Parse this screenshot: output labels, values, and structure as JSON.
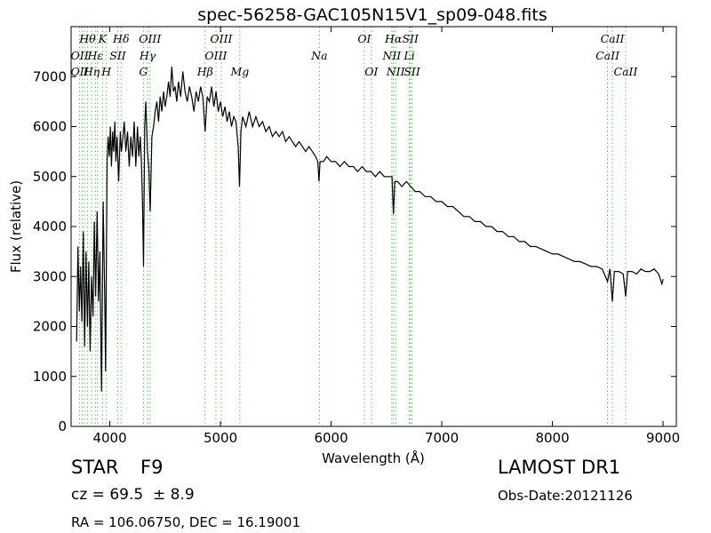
{
  "chart_data": {
    "type": "line",
    "title": "spec-56258-GAC105N15V1_sp09-048.fits",
    "xlabel": "Wavelength (Å)",
    "ylabel": "Flux (relative)",
    "xlim": [
      3650,
      9120
    ],
    "ylim": [
      0,
      8000
    ],
    "xticks": [
      4000,
      5000,
      6000,
      7000,
      8000,
      9000
    ],
    "yticks": [
      0,
      1000,
      2000,
      3000,
      4000,
      5000,
      6000,
      7000
    ],
    "grid": false,
    "series": [
      {
        "points": [
          [
            3700,
            1700
          ],
          [
            3712,
            3600
          ],
          [
            3725,
            2300
          ],
          [
            3735,
            3200
          ],
          [
            3748,
            2100
          ],
          [
            3760,
            3900
          ],
          [
            3772,
            1600
          ],
          [
            3785,
            3500
          ],
          [
            3798,
            2000
          ],
          [
            3810,
            3300
          ],
          [
            3822,
            1500
          ],
          [
            3835,
            3000
          ],
          [
            3848,
            2200
          ],
          [
            3860,
            4100
          ],
          [
            3872,
            2600
          ],
          [
            3885,
            4300
          ],
          [
            3898,
            2500
          ],
          [
            3910,
            3500
          ],
          [
            3925,
            700
          ],
          [
            3940,
            4500
          ],
          [
            3955,
            2400
          ],
          [
            3962,
            1100
          ],
          [
            3975,
            5300
          ],
          [
            3985,
            5800
          ],
          [
            3995,
            5400
          ],
          [
            4005,
            6000
          ],
          [
            4015,
            5200
          ],
          [
            4025,
            5900
          ],
          [
            4035,
            5500
          ],
          [
            4045,
            6100
          ],
          [
            4055,
            5300
          ],
          [
            4065,
            5800
          ],
          [
            4080,
            4900
          ],
          [
            4095,
            5900
          ],
          [
            4105,
            5500
          ],
          [
            4115,
            5700
          ],
          [
            4130,
            6100
          ],
          [
            4145,
            5500
          ],
          [
            4160,
            5900
          ],
          [
            4175,
            5200
          ],
          [
            4190,
            5800
          ],
          [
            4205,
            5400
          ],
          [
            4220,
            6100
          ],
          [
            4235,
            5200
          ],
          [
            4250,
            6000
          ],
          [
            4262,
            5400
          ],
          [
            4275,
            5800
          ],
          [
            4285,
            5300
          ],
          [
            4295,
            4500
          ],
          [
            4305,
            3200
          ],
          [
            4315,
            6000
          ],
          [
            4325,
            6500
          ],
          [
            4340,
            5500
          ],
          [
            4352,
            5200
          ],
          [
            4365,
            4300
          ],
          [
            4380,
            5800
          ],
          [
            4395,
            6000
          ],
          [
            4410,
            6300
          ],
          [
            4425,
            6500
          ],
          [
            4440,
            6100
          ],
          [
            4455,
            6600
          ],
          [
            4470,
            6300
          ],
          [
            4485,
            6700
          ],
          [
            4500,
            6400
          ],
          [
            4515,
            6600
          ],
          [
            4530,
            6900
          ],
          [
            4545,
            6600
          ],
          [
            4560,
            7200
          ],
          [
            4575,
            6700
          ],
          [
            4590,
            6800
          ],
          [
            4605,
            6500
          ],
          [
            4620,
            6900
          ],
          [
            4640,
            6600
          ],
          [
            4660,
            7100
          ],
          [
            4680,
            6700
          ],
          [
            4700,
            6500
          ],
          [
            4720,
            6800
          ],
          [
            4740,
            6600
          ],
          [
            4760,
            6300
          ],
          [
            4780,
            6700
          ],
          [
            4800,
            6500
          ],
          [
            4820,
            6800
          ],
          [
            4840,
            6600
          ],
          [
            4861,
            5900
          ],
          [
            4880,
            6600
          ],
          [
            4900,
            6500
          ],
          [
            4920,
            6800
          ],
          [
            4940,
            6400
          ],
          [
            4960,
            6700
          ],
          [
            4980,
            6300
          ],
          [
            5000,
            6500
          ],
          [
            5020,
            6200
          ],
          [
            5040,
            6400
          ],
          [
            5060,
            6100
          ],
          [
            5080,
            6300
          ],
          [
            5100,
            6000
          ],
          [
            5120,
            6200
          ],
          [
            5140,
            6100
          ],
          [
            5160,
            5600
          ],
          [
            5172,
            4800
          ],
          [
            5185,
            5900
          ],
          [
            5200,
            6200
          ],
          [
            5230,
            6000
          ],
          [
            5260,
            6300
          ],
          [
            5290,
            6000
          ],
          [
            5320,
            6200
          ],
          [
            5350,
            6000
          ],
          [
            5380,
            6100
          ],
          [
            5410,
            5900
          ],
          [
            5440,
            6000
          ],
          [
            5470,
            5800
          ],
          [
            5500,
            5900
          ],
          [
            5530,
            5800
          ],
          [
            5560,
            5900
          ],
          [
            5590,
            5700
          ],
          [
            5620,
            5800
          ],
          [
            5650,
            5700
          ],
          [
            5680,
            5600
          ],
          [
            5710,
            5700
          ],
          [
            5740,
            5600
          ],
          [
            5770,
            5500
          ],
          [
            5800,
            5600
          ],
          [
            5830,
            5500
          ],
          [
            5860,
            5400
          ],
          [
            5880,
            5300
          ],
          [
            5890,
            4900
          ],
          [
            5900,
            5300
          ],
          [
            5930,
            5300
          ],
          [
            5960,
            5400
          ],
          [
            6000,
            5300
          ],
          [
            6040,
            5300
          ],
          [
            6080,
            5200
          ],
          [
            6120,
            5300
          ],
          [
            6160,
            5200
          ],
          [
            6200,
            5200
          ],
          [
            6240,
            5100
          ],
          [
            6280,
            5200
          ],
          [
            6320,
            5100
          ],
          [
            6360,
            5100
          ],
          [
            6400,
            5000
          ],
          [
            6440,
            5100
          ],
          [
            6480,
            5000
          ],
          [
            6520,
            5000
          ],
          [
            6550,
            5000
          ],
          [
            6563,
            4250
          ],
          [
            6575,
            4900
          ],
          [
            6600,
            4900
          ],
          [
            6640,
            4800
          ],
          [
            6680,
            4900
          ],
          [
            6720,
            4800
          ],
          [
            6760,
            4700
          ],
          [
            6800,
            4700
          ],
          [
            6850,
            4600
          ],
          [
            6900,
            4600
          ],
          [
            6950,
            4500
          ],
          [
            7000,
            4500
          ],
          [
            7050,
            4400
          ],
          [
            7100,
            4400
          ],
          [
            7150,
            4300
          ],
          [
            7200,
            4200
          ],
          [
            7250,
            4200
          ],
          [
            7300,
            4100
          ],
          [
            7350,
            4100
          ],
          [
            7400,
            4000
          ],
          [
            7450,
            4000
          ],
          [
            7500,
            3900
          ],
          [
            7550,
            3900
          ],
          [
            7600,
            3800
          ],
          [
            7650,
            3800
          ],
          [
            7700,
            3700
          ],
          [
            7750,
            3700
          ],
          [
            7800,
            3600
          ],
          [
            7850,
            3600
          ],
          [
            7900,
            3550
          ],
          [
            7950,
            3500
          ],
          [
            8000,
            3450
          ],
          [
            8050,
            3450
          ],
          [
            8100,
            3400
          ],
          [
            8150,
            3350
          ],
          [
            8200,
            3300
          ],
          [
            8250,
            3300
          ],
          [
            8300,
            3250
          ],
          [
            8350,
            3200
          ],
          [
            8400,
            3200
          ],
          [
            8450,
            3150
          ],
          [
            8498,
            2900
          ],
          [
            8520,
            3150
          ],
          [
            8542,
            2500
          ],
          [
            8560,
            3100
          ],
          [
            8600,
            3100
          ],
          [
            8640,
            3050
          ],
          [
            8662,
            2600
          ],
          [
            8680,
            3100
          ],
          [
            8720,
            3100
          ],
          [
            8760,
            3050
          ],
          [
            8800,
            3150
          ],
          [
            8840,
            3100
          ],
          [
            8880,
            3100
          ],
          [
            8920,
            3150
          ],
          [
            8960,
            3050
          ],
          [
            8990,
            2850
          ],
          [
            9000,
            2950
          ]
        ]
      }
    ],
    "reference_lines": [
      {
        "x": 3727,
        "labels": [
          {
            "text": "OII",
            "row": 2
          },
          {
            "text": "OII",
            "row": 3
          }
        ]
      },
      {
        "x": 3750,
        "labels": []
      },
      {
        "x": 3771,
        "labels": []
      },
      {
        "x": 3798,
        "labels": [
          {
            "text": "Hθ",
            "row": 1
          }
        ]
      },
      {
        "x": 3835,
        "labels": [
          {
            "text": "Hη",
            "row": 3
          }
        ]
      },
      {
        "x": 3869,
        "labels": [
          {
            "text": "Hε",
            "row": 2
          }
        ]
      },
      {
        "x": 3889,
        "labels": []
      },
      {
        "x": 3934,
        "labels": [
          {
            "text": "K",
            "row": 1
          }
        ]
      },
      {
        "x": 3969,
        "labels": [
          {
            "text": "H",
            "row": 3
          }
        ]
      },
      {
        "x": 4072,
        "labels": [
          {
            "text": "SII",
            "row": 2
          }
        ]
      },
      {
        "x": 4102,
        "labels": [
          {
            "text": "Hδ",
            "row": 1
          }
        ]
      },
      {
        "x": 4304,
        "labels": [
          {
            "text": "G",
            "row": 3
          }
        ]
      },
      {
        "x": 4341,
        "labels": [
          {
            "text": "Hγ",
            "row": 2
          }
        ]
      },
      {
        "x": 4363,
        "labels": [
          {
            "text": "OIII",
            "row": 1
          }
        ]
      },
      {
        "x": 4861,
        "labels": [
          {
            "text": "Hβ",
            "row": 3
          }
        ]
      },
      {
        "x": 4959,
        "labels": [
          {
            "text": "OIII",
            "row": 2
          }
        ]
      },
      {
        "x": 5007,
        "labels": [
          {
            "text": "OIII",
            "row": 1
          }
        ]
      },
      {
        "x": 5175,
        "labels": [
          {
            "text": "Mg",
            "row": 3
          }
        ]
      },
      {
        "x": 5894,
        "labels": [
          {
            "text": "Na",
            "row": 2
          }
        ]
      },
      {
        "x": 6300,
        "labels": [
          {
            "text": "OI",
            "row": 1
          }
        ]
      },
      {
        "x": 6364,
        "labels": [
          {
            "text": "OI",
            "row": 3
          }
        ]
      },
      {
        "x": 6548,
        "labels": [
          {
            "text": "NII",
            "row": 2
          }
        ]
      },
      {
        "x": 6563,
        "labels": [
          {
            "text": "Hα",
            "row": 1
          }
        ]
      },
      {
        "x": 6583,
        "labels": [
          {
            "text": "NII",
            "row": 3
          }
        ]
      },
      {
        "x": 6707,
        "labels": [
          {
            "text": "Li",
            "row": 2
          }
        ]
      },
      {
        "x": 6716,
        "labels": [
          {
            "text": "SII",
            "row": 1
          }
        ]
      },
      {
        "x": 6731,
        "labels": [
          {
            "text": "SII",
            "row": 3
          }
        ]
      },
      {
        "x": 8498,
        "labels": [
          {
            "text": "CaII",
            "row": 2
          }
        ]
      },
      {
        "x": 8542,
        "labels": [
          {
            "text": "CaII",
            "row": 1
          }
        ]
      },
      {
        "x": 8662,
        "labels": [
          {
            "text": "CaII",
            "row": 3
          }
        ]
      }
    ],
    "reference_line_color": "#5fbf5f",
    "line_color": "#000000"
  },
  "info": {
    "class_label": "STAR",
    "subclass": "F9",
    "cz": "cz = 69.5  ± 8.9",
    "coords": "RA = 106.06750, DEC = 16.19001",
    "survey": "LAMOST DR1",
    "obs_date": "Obs-Date:20121126"
  }
}
